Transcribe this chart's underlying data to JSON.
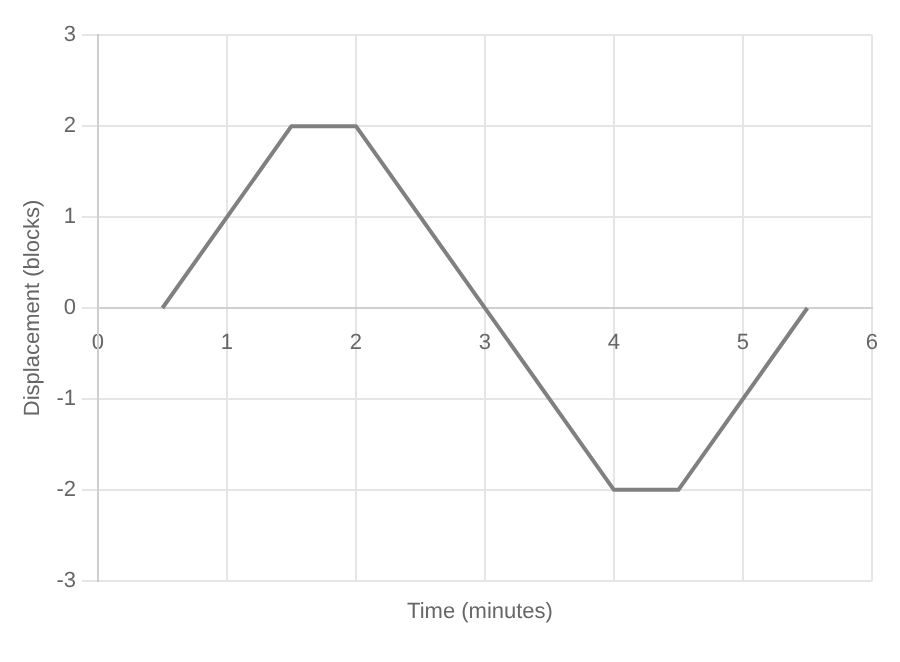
{
  "chart_data": {
    "type": "line",
    "xlabel": "Time (minutes)",
    "ylabel": "Displacement (blocks)",
    "x": [
      0.5,
      1.5,
      2,
      4,
      4.5,
      5.5
    ],
    "series": [
      {
        "color": "#808080",
        "values": [
          0,
          2,
          2,
          -2,
          -2,
          0
        ]
      }
    ],
    "xlim": [
      0,
      6
    ],
    "xticks": [
      0,
      1,
      2,
      3,
      4,
      5,
      6
    ],
    "ylim": [
      -3,
      3
    ],
    "yticks": [
      -3,
      -2,
      -1,
      0,
      1,
      2,
      3
    ],
    "grid": true,
    "legend": false,
    "marker": "none",
    "line_style": "solid"
  }
}
